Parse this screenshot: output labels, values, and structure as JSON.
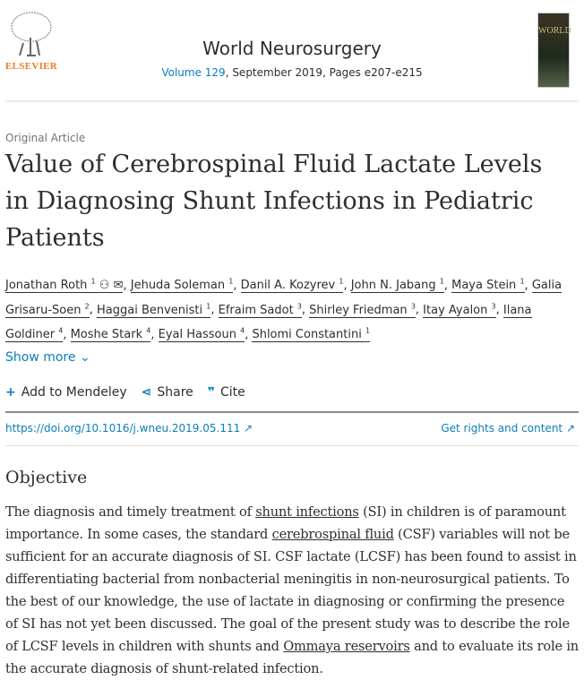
{
  "header": {
    "publisher": "ELSEVIER",
    "journal": "World Neurosurgery",
    "volume_link": "Volume 129",
    "volume_rest": ", September 2019, Pages e207-e215",
    "cover_text": "WORLD"
  },
  "article": {
    "type": "Original Article",
    "title": "Value of Cerebrospinal Fluid Lactate Levels in Diagnosing Shunt Infections in Pediatric Patients"
  },
  "authors": [
    {
      "name": "Jonathan Roth",
      "aff": "1"
    },
    {
      "name": "Jehuda Soleman",
      "aff": "1"
    },
    {
      "name": "Danil A. Kozyrev",
      "aff": "1"
    },
    {
      "name": "John N. Jabang",
      "aff": "1"
    },
    {
      "name": "Maya Stein",
      "aff": "1"
    },
    {
      "name": "Galia Grisaru-Soen",
      "aff": "2"
    },
    {
      "name": "Haggai Benvenisti",
      "aff": "1"
    },
    {
      "name": "Efraim Sadot",
      "aff": "3"
    },
    {
      "name": "Shirley Friedman",
      "aff": "3"
    },
    {
      "name": "Itay Ayalon",
      "aff": "3"
    },
    {
      "name": "Ilana Goldiner",
      "aff": "4"
    },
    {
      "name": "Moshe Stark",
      "aff": "4"
    },
    {
      "name": "Eyal Hassoun",
      "aff": "4"
    },
    {
      "name": "Shlomi Constantini",
      "aff": "1"
    }
  ],
  "show_more": "Show more",
  "actions": {
    "mendeley": "Add to Mendeley",
    "share": "Share",
    "cite": "Cite"
  },
  "doi": "https://doi.org/10.1016/j.wneu.2019.05.111 ↗",
  "rights": "Get rights and content ↗",
  "section": {
    "heading": "Objective",
    "p1": "The diagnosis and timely treatment of ",
    "l1": "shunt infections",
    "p2": " (SI) in children is of paramount importance. In some cases, the standard ",
    "l2": "cerebrospinal fluid",
    "p3": " (CSF) variables will not be sufficient for an accurate diagnosis of SI. CSF lactate (LCSF) has been found to assist in differentiating bacterial from nonbacterial meningitis in non-neurosurgical patients. To the best of our knowledge, the use of lactate in diagnosing or confirming the presence of SI has not yet been discussed. The goal of the present study was to describe the role of LCSF levels in children with shunts and ",
    "l3": "Ommaya reservoirs",
    "p4": " and to evaluate its role in the accurate diagnosis of shunt-related infection."
  }
}
